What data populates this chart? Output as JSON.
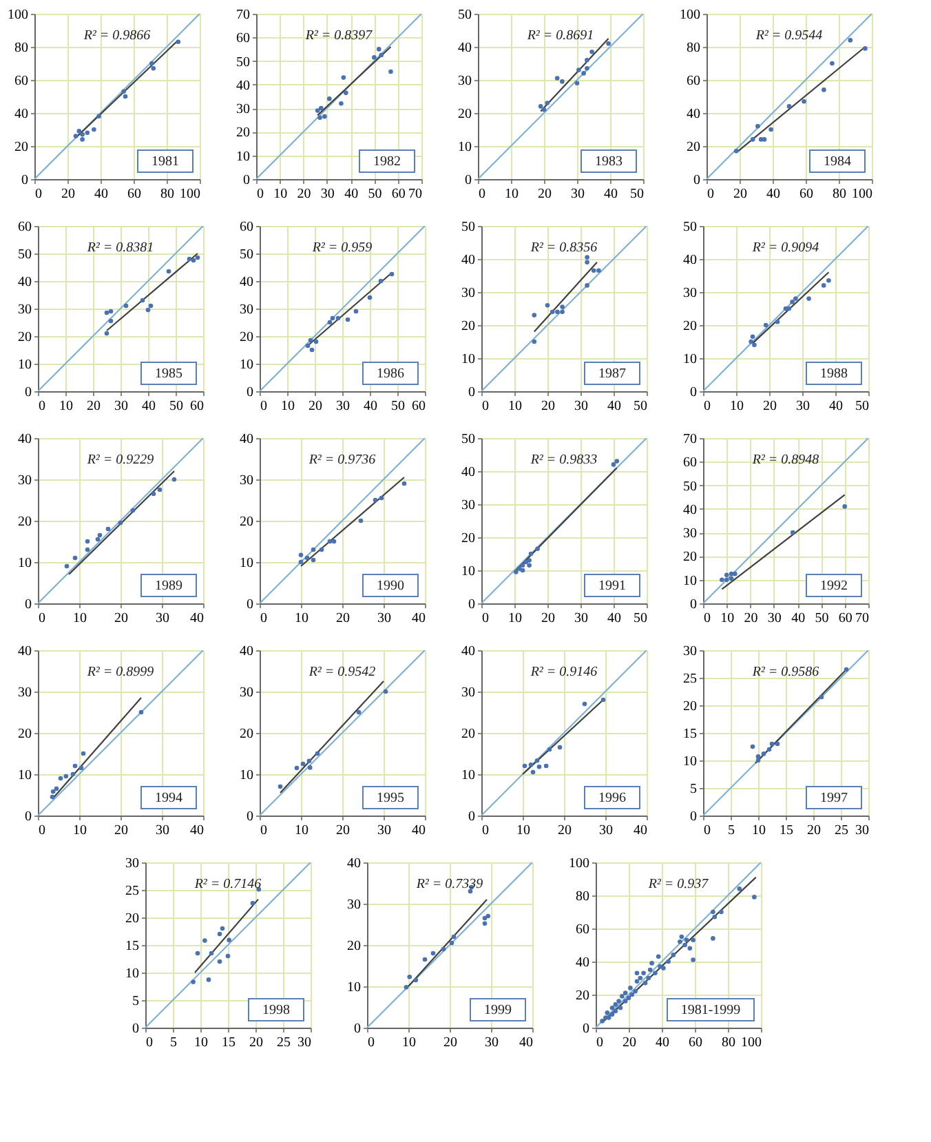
{
  "chart_data": [
    {
      "type": "scatter",
      "annotations": [
        "R² = 0.9866",
        "1981"
      ],
      "xlim": [
        0,
        100
      ],
      "ylim": [
        0,
        100
      ],
      "xticks": [
        0,
        20,
        40,
        60,
        80,
        100
      ],
      "yticks": [
        0,
        20,
        40,
        60,
        80,
        100
      ],
      "grid": true,
      "series": [
        {
          "type": "line",
          "color": "#7fb0d6",
          "x": [
            0,
            100
          ],
          "values": [
            0,
            100
          ]
        },
        {
          "type": "line",
          "color": "#404040",
          "x": [
            25,
            87
          ],
          "values": [
            25,
            84
          ]
        },
        {
          "marker": "circle",
          "color": "#4a72b0",
          "x": [
            25,
            27,
            29,
            29,
            32,
            36,
            39,
            54,
            55,
            71,
            72,
            87
          ],
          "values": [
            26,
            29,
            27,
            24,
            28,
            30,
            38,
            53,
            50,
            70,
            67,
            83
          ]
        }
      ]
    },
    {
      "type": "scatter",
      "annotations": [
        "R² = 0.8397",
        "1982"
      ],
      "xlim": [
        0,
        70
      ],
      "ylim": [
        0,
        70
      ],
      "xticks": [
        0,
        10,
        20,
        30,
        40,
        50,
        60,
        70
      ],
      "yticks": [
        0,
        10,
        20,
        30,
        40,
        50,
        60,
        70
      ],
      "grid": true,
      "series": [
        {
          "type": "line",
          "color": "#7fb0d6",
          "x": [
            0,
            70
          ],
          "values": [
            0,
            70
          ]
        },
        {
          "type": "line",
          "color": "#404040",
          "x": [
            26,
            57
          ],
          "values": [
            27,
            56
          ]
        },
        {
          "marker": "circle",
          "color": "#4a72b0",
          "x": [
            26,
            27.5,
            27,
            29,
            31,
            36,
            37,
            38,
            50,
            52,
            53,
            57
          ],
          "values": [
            29,
            30,
            26,
            26.5,
            34,
            32,
            43,
            36.5,
            51.5,
            55,
            52.5,
            45.5
          ]
        }
      ]
    },
    {
      "type": "scatter",
      "annotations": [
        "R² = 0.8691",
        "1983"
      ],
      "xlim": [
        0,
        50
      ],
      "ylim": [
        0,
        50
      ],
      "xticks": [
        0,
        10,
        20,
        30,
        40,
        50
      ],
      "yticks": [
        0,
        10,
        20,
        30,
        40,
        50
      ],
      "grid": true,
      "series": [
        {
          "type": "line",
          "color": "#7fb0d6",
          "x": [
            0,
            50
          ],
          "values": [
            0,
            50
          ]
        },
        {
          "type": "line",
          "color": "#404040",
          "x": [
            19,
            39.5
          ],
          "values": [
            20.5,
            42.5
          ]
        },
        {
          "marker": "circle",
          "color": "#4a72b0",
          "x": [
            19,
            20,
            21,
            24,
            25.5,
            30,
            30.5,
            32,
            33,
            33,
            34.5,
            39.5
          ],
          "values": [
            22,
            21,
            23,
            30.5,
            29.5,
            29,
            33,
            32,
            36,
            33.5,
            38.5,
            41
          ]
        }
      ]
    },
    {
      "type": "scatter",
      "annotations": [
        "R² = 0.9544",
        "1984"
      ],
      "xlim": [
        0,
        100
      ],
      "ylim": [
        0,
        100
      ],
      "xticks": [
        0,
        20,
        40,
        60,
        80,
        100
      ],
      "yticks": [
        0,
        20,
        40,
        60,
        80,
        100
      ],
      "grid": true,
      "series": [
        {
          "type": "line",
          "color": "#7fb0d6",
          "x": [
            0,
            100
          ],
          "values": [
            0,
            100
          ]
        },
        {
          "type": "line",
          "color": "#404040",
          "x": [
            18,
            96
          ],
          "values": [
            16,
            80
          ]
        },
        {
          "marker": "circle",
          "color": "#4a72b0",
          "x": [
            18,
            28,
            31,
            33,
            35,
            39,
            50,
            59,
            71,
            76,
            87,
            96
          ],
          "values": [
            17,
            24,
            32,
            24,
            24,
            30,
            44,
            47,
            54,
            70,
            84,
            79
          ]
        }
      ]
    },
    {
      "type": "scatter",
      "annotations": [
        "R² = 0.8381",
        "1985"
      ],
      "xlim": [
        0,
        60
      ],
      "ylim": [
        0,
        60
      ],
      "xticks": [
        0,
        10,
        20,
        30,
        40,
        50,
        60
      ],
      "yticks": [
        0,
        10,
        20,
        30,
        40,
        50,
        60
      ],
      "grid": true,
      "series": [
        {
          "type": "line",
          "color": "#7fb0d6",
          "x": [
            0,
            60
          ],
          "values": [
            0,
            60
          ]
        },
        {
          "type": "line",
          "color": "#404040",
          "x": [
            25,
            58
          ],
          "values": [
            22,
            50
          ]
        },
        {
          "marker": "circle",
          "color": "#4a72b0",
          "x": [
            25,
            26.5,
            25,
            26.5,
            32,
            38,
            40,
            41,
            47.5,
            55,
            56.5,
            58
          ],
          "values": [
            28.5,
            29,
            21,
            25.5,
            31,
            33,
            29.5,
            31,
            43.5,
            48,
            47.5,
            48.5
          ]
        }
      ]
    },
    {
      "type": "scatter",
      "annotations": [
        "R² = 0.959",
        "1986"
      ],
      "xlim": [
        0,
        60
      ],
      "ylim": [
        0,
        60
      ],
      "xticks": [
        0,
        10,
        20,
        30,
        40,
        50,
        60
      ],
      "yticks": [
        0,
        10,
        20,
        30,
        40,
        50,
        60
      ],
      "grid": true,
      "series": [
        {
          "type": "line",
          "color": "#7fb0d6",
          "x": [
            0,
            60
          ],
          "values": [
            0,
            60
          ]
        },
        {
          "type": "line",
          "color": "#404040",
          "x": [
            18,
            48
          ],
          "values": [
            17,
            43
          ]
        },
        {
          "marker": "circle",
          "color": "#4a72b0",
          "x": [
            17.5,
            19,
            18.5,
            20.5,
            25.5,
            26.5,
            28.5,
            32,
            35,
            40,
            44,
            48
          ],
          "values": [
            16.5,
            15,
            18.5,
            18,
            25,
            26.5,
            26.5,
            26,
            29,
            34,
            40,
            42.5
          ]
        }
      ]
    },
    {
      "type": "scatter",
      "annotations": [
        "R² = 0.8356",
        "1987"
      ],
      "xlim": [
        0,
        50
      ],
      "ylim": [
        0,
        50
      ],
      "xticks": [
        0,
        10,
        20,
        30,
        40,
        50
      ],
      "yticks": [
        0,
        10,
        20,
        30,
        40,
        50
      ],
      "grid": true,
      "series": [
        {
          "type": "line",
          "color": "#7fb0d6",
          "x": [
            0,
            50
          ],
          "values": [
            0,
            50
          ]
        },
        {
          "type": "line",
          "color": "#404040",
          "x": [
            16,
            35
          ],
          "values": [
            18,
            39
          ]
        },
        {
          "marker": "circle",
          "color": "#4a72b0",
          "x": [
            16,
            16,
            20,
            21.5,
            23,
            24.5,
            24.5,
            32,
            32,
            32,
            34,
            35.5
          ],
          "values": [
            23,
            15,
            26,
            24,
            24,
            24,
            25.5,
            40.5,
            39,
            32,
            36.5,
            36.5
          ]
        }
      ]
    },
    {
      "type": "scatter",
      "annotations": [
        "R² = 0.9094",
        "1988"
      ],
      "xlim": [
        0,
        50
      ],
      "ylim": [
        0,
        50
      ],
      "xticks": [
        0,
        10,
        20,
        30,
        40,
        50
      ],
      "yticks": [
        0,
        10,
        20,
        30,
        40,
        50
      ],
      "grid": true,
      "series": [
        {
          "type": "line",
          "color": "#7fb0d6",
          "x": [
            0,
            50
          ],
          "values": [
            0,
            50
          ]
        },
        {
          "type": "line",
          "color": "#404040",
          "x": [
            15,
            38
          ],
          "values": [
            14.5,
            36
          ]
        },
        {
          "marker": "circle",
          "color": "#4a72b0",
          "x": [
            14.5,
            15,
            15.5,
            19,
            22.5,
            25,
            26,
            27,
            28,
            32,
            36.5,
            38
          ],
          "values": [
            15,
            16.5,
            14,
            20,
            21,
            25,
            25,
            27,
            28,
            28,
            32,
            33.5
          ]
        }
      ]
    },
    {
      "type": "scatter",
      "annotations": [
        "R² = 0.9229",
        "1989"
      ],
      "xlim": [
        0,
        40
      ],
      "ylim": [
        0,
        40
      ],
      "xticks": [
        0,
        10,
        20,
        30,
        40
      ],
      "yticks": [
        0,
        10,
        20,
        30,
        40
      ],
      "grid": true,
      "series": [
        {
          "type": "line",
          "color": "#7fb0d6",
          "x": [
            0,
            40
          ],
          "values": [
            0,
            40
          ]
        },
        {
          "type": "line",
          "color": "#404040",
          "x": [
            7.5,
            33
          ],
          "values": [
            7,
            32
          ]
        },
        {
          "marker": "circle",
          "color": "#4a72b0",
          "x": [
            7,
            9,
            12,
            12,
            14.5,
            15,
            17,
            20,
            23,
            28,
            29.5,
            33
          ],
          "values": [
            9,
            11,
            15,
            13,
            15.5,
            16.5,
            18,
            19.5,
            22.5,
            26.5,
            27.5,
            30
          ]
        }
      ]
    },
    {
      "type": "scatter",
      "annotations": [
        "R² = 0.9736",
        "1990"
      ],
      "xlim": [
        0,
        40
      ],
      "ylim": [
        0,
        40
      ],
      "xticks": [
        0,
        10,
        20,
        30,
        40
      ],
      "yticks": [
        0,
        10,
        20,
        30,
        40
      ],
      "grid": true,
      "series": [
        {
          "type": "line",
          "color": "#7fb0d6",
          "x": [
            0,
            40
          ],
          "values": [
            0,
            40
          ]
        },
        {
          "type": "line",
          "color": "#404040",
          "x": [
            10,
            35
          ],
          "values": [
            9,
            30.5
          ]
        },
        {
          "marker": "circle",
          "color": "#4a72b0",
          "x": [
            10,
            10,
            11.5,
            13,
            13,
            15,
            17,
            18,
            24.5,
            28,
            29.5,
            35
          ],
          "values": [
            10,
            11.7,
            11,
            10.5,
            13,
            13,
            15,
            15,
            20,
            25,
            25.5,
            29
          ]
        }
      ]
    },
    {
      "type": "scatter",
      "annotations": [
        "R² = 0.9833",
        "1991"
      ],
      "xlim": [
        0,
        50
      ],
      "ylim": [
        0,
        50
      ],
      "xticks": [
        0,
        10,
        20,
        30,
        40,
        50
      ],
      "yticks": [
        0,
        10,
        20,
        30,
        40,
        50
      ],
      "grid": true,
      "series": [
        {
          "type": "line",
          "color": "#7fb0d6",
          "x": [
            0,
            50
          ],
          "values": [
            0,
            50
          ]
        },
        {
          "type": "line",
          "color": "#404040",
          "x": [
            10,
            41
          ],
          "values": [
            9.5,
            41
          ]
        },
        {
          "marker": "circle",
          "color": "#4a72b0",
          "x": [
            10.5,
            11.5,
            12.5,
            12.5,
            13.5,
            14.5,
            14.5,
            15,
            17,
            40,
            41
          ],
          "values": [
            9.5,
            10.5,
            11.5,
            10,
            12.5,
            11.5,
            13,
            15,
            16.5,
            42,
            43
          ]
        }
      ]
    },
    {
      "type": "scatter",
      "annotations": [
        "R² = 0.8948",
        "1992"
      ],
      "xlim": [
        0,
        70
      ],
      "ylim": [
        0,
        70
      ],
      "xticks": [
        0,
        10,
        20,
        30,
        40,
        50,
        60,
        70
      ],
      "yticks": [
        0,
        10,
        20,
        30,
        40,
        50,
        60,
        70
      ],
      "grid": true,
      "series": [
        {
          "type": "line",
          "color": "#7fb0d6",
          "x": [
            0,
            70
          ],
          "values": [
            0,
            70
          ]
        },
        {
          "type": "line",
          "color": "#404040",
          "x": [
            8,
            60
          ],
          "values": [
            6,
            46
          ]
        },
        {
          "marker": "circle",
          "color": "#4a72b0",
          "x": [
            8,
            10,
            10,
            12,
            12,
            13.5,
            38,
            60
          ],
          "values": [
            10,
            12,
            10,
            10.5,
            12.5,
            12.5,
            30,
            41
          ]
        }
      ]
    },
    {
      "type": "scatter",
      "annotations": [
        "R² = 0.8999",
        "1994"
      ],
      "xlim": [
        0,
        40
      ],
      "ylim": [
        0,
        40
      ],
      "xticks": [
        0,
        10,
        20,
        30,
        40
      ],
      "yticks": [
        0,
        10,
        20,
        30,
        40
      ],
      "grid": true,
      "series": [
        {
          "type": "line",
          "color": "#7fb0d6",
          "x": [
            0,
            40
          ],
          "values": [
            0,
            40
          ]
        },
        {
          "type": "line",
          "color": "#404040",
          "x": [
            3.5,
            25
          ],
          "values": [
            4,
            28.5
          ]
        },
        {
          "marker": "circle",
          "color": "#4a72b0",
          "x": [
            3.5,
            3.7,
            4.5,
            5.5,
            6.8,
            8.5,
            9,
            10.5,
            11,
            25
          ],
          "values": [
            4.5,
            5.8,
            6.5,
            9,
            9.5,
            10,
            12,
            11.5,
            15,
            25
          ]
        }
      ]
    },
    {
      "type": "scatter",
      "annotations": [
        "R² = 0.9542",
        "1995"
      ],
      "xlim": [
        0,
        40
      ],
      "ylim": [
        0,
        40
      ],
      "xticks": [
        0,
        10,
        20,
        30,
        40
      ],
      "yticks": [
        0,
        10,
        20,
        30,
        40
      ],
      "grid": true,
      "series": [
        {
          "type": "line",
          "color": "#7fb0d6",
          "x": [
            0,
            40
          ],
          "values": [
            0,
            40
          ]
        },
        {
          "type": "line",
          "color": "#404040",
          "x": [
            5,
            30
          ],
          "values": [
            5.5,
            32.5
          ]
        },
        {
          "marker": "circle",
          "color": "#4a72b0",
          "x": [
            5,
            9,
            10.5,
            12,
            12.2,
            14,
            24,
            30.5
          ],
          "values": [
            7,
            11.5,
            12.5,
            13.2,
            11.6,
            15,
            25,
            30
          ]
        }
      ]
    },
    {
      "type": "scatter",
      "annotations": [
        "R² = 0.9146",
        "1996"
      ],
      "xlim": [
        0,
        40
      ],
      "ylim": [
        0,
        40
      ],
      "xticks": [
        0,
        10,
        20,
        30,
        40
      ],
      "yticks": [
        0,
        10,
        20,
        30,
        40
      ],
      "grid": true,
      "series": [
        {
          "type": "line",
          "color": "#7fb0d6",
          "x": [
            0,
            40
          ],
          "values": [
            0,
            40
          ]
        },
        {
          "type": "line",
          "color": "#404040",
          "x": [
            10,
            29.5
          ],
          "values": [
            10,
            28
          ]
        },
        {
          "marker": "circle",
          "color": "#4a72b0",
          "x": [
            10.5,
            12,
            12.5,
            13.5,
            14,
            15.7,
            16.5,
            19,
            25,
            29.5
          ],
          "values": [
            12,
            12.3,
            10.5,
            13.3,
            11.8,
            12,
            16,
            16.5,
            27,
            28
          ]
        }
      ]
    },
    {
      "type": "scatter",
      "annotations": [
        "R² = 0.9586",
        "1997"
      ],
      "xlim": [
        0,
        30
      ],
      "ylim": [
        0,
        30
      ],
      "xticks": [
        0,
        5,
        10,
        15,
        20,
        25,
        30
      ],
      "yticks": [
        0,
        5,
        10,
        15,
        20,
        25,
        30
      ],
      "grid": true,
      "series": [
        {
          "type": "line",
          "color": "#7fb0d6",
          "x": [
            0,
            30
          ],
          "values": [
            0,
            30
          ]
        },
        {
          "type": "line",
          "color": "#404040",
          "x": [
            9.5,
            26
          ],
          "values": [
            9.5,
            26.5
          ]
        },
        {
          "marker": "circle",
          "color": "#4a72b0",
          "x": [
            9,
            10,
            10,
            11,
            12,
            12.5,
            13.5,
            21.5,
            26
          ],
          "values": [
            12.5,
            10.7,
            10,
            11.2,
            12,
            13,
            13,
            21.5,
            26.5
          ]
        }
      ]
    },
    {
      "type": "scatter",
      "annotations": [
        "R² = 0.7146",
        "1998"
      ],
      "xlim": [
        0,
        30
      ],
      "ylim": [
        0,
        30
      ],
      "xticks": [
        0,
        5,
        10,
        15,
        20,
        25,
        30
      ],
      "yticks": [
        0,
        5,
        10,
        15,
        20,
        25,
        30
      ],
      "grid": true,
      "series": [
        {
          "type": "line",
          "color": "#7fb0d6",
          "x": [
            0,
            30
          ],
          "values": [
            0,
            30
          ]
        },
        {
          "type": "line",
          "color": "#404040",
          "x": [
            9,
            20.5
          ],
          "values": [
            10,
            23.3
          ]
        },
        {
          "marker": "circle",
          "color": "#4a72b0",
          "x": [
            8.7,
            9.5,
            10.8,
            11.5,
            12,
            13.5,
            13.5,
            14,
            15,
            15.2,
            19.5,
            20.6
          ],
          "values": [
            8.3,
            13.5,
            15.8,
            8.7,
            13.5,
            12,
            17,
            18,
            13,
            15.9,
            22.6,
            25.1
          ]
        }
      ]
    },
    {
      "type": "scatter",
      "annotations": [
        "R² = 0.7339",
        "1999"
      ],
      "xlim": [
        0,
        40
      ],
      "ylim": [
        0,
        40
      ],
      "xticks": [
        0,
        10,
        20,
        30,
        40
      ],
      "yticks": [
        0,
        10,
        20,
        30,
        40
      ],
      "grid": true,
      "series": [
        {
          "type": "line",
          "color": "#7fb0d6",
          "x": [
            0,
            40
          ],
          "values": [
            0,
            40
          ]
        },
        {
          "type": "line",
          "color": "#404040",
          "x": [
            10,
            29
          ],
          "values": [
            10,
            31
          ]
        },
        {
          "marker": "circle",
          "color": "#4a72b0",
          "x": [
            9.5,
            10.3,
            11.8,
            14,
            16,
            18.5,
            20.5,
            21,
            25,
            25.3,
            28.5,
            28.5,
            29.3
          ],
          "values": [
            9.8,
            12.3,
            11.5,
            16.5,
            18,
            19,
            20.5,
            22,
            33,
            34,
            25.2,
            26.5,
            27
          ]
        }
      ]
    },
    {
      "type": "scatter",
      "annotations": [
        "R² = 0.937",
        "1981-1999"
      ],
      "xlim": [
        0,
        100
      ],
      "ylim": [
        0,
        100
      ],
      "xticks": [
        0,
        20,
        40,
        60,
        80,
        100
      ],
      "yticks": [
        0,
        20,
        40,
        60,
        80,
        100
      ],
      "grid": true,
      "series": [
        {
          "type": "line",
          "color": "#7fb0d6",
          "x": [
            0,
            100
          ],
          "values": [
            0,
            100
          ]
        },
        {
          "type": "line",
          "color": "#404040",
          "x": [
            5,
            97
          ],
          "values": [
            4,
            91
          ]
        },
        {
          "marker": "circle",
          "color": "#4a72b0",
          "x": [
            4,
            6,
            7,
            8,
            10,
            10,
            12,
            12,
            14,
            15,
            16,
            18,
            18,
            20,
            21,
            22,
            24,
            25,
            25,
            27,
            29,
            30,
            32,
            33,
            34,
            36,
            38,
            39,
            41,
            44,
            47,
            51,
            52,
            54,
            55,
            57,
            59,
            59,
            71,
            71,
            72,
            76,
            87,
            96
          ],
          "values": [
            4,
            6,
            9,
            6,
            12,
            8,
            10,
            14,
            16,
            12,
            19,
            16,
            21,
            18,
            24,
            20,
            22,
            28,
            33,
            30,
            33,
            27,
            30,
            35,
            39,
            33,
            43,
            37,
            36,
            40,
            44,
            52,
            55,
            50,
            53,
            48,
            53,
            41,
            54,
            70,
            67,
            70,
            84,
            79
          ]
        }
      ]
    }
  ]
}
